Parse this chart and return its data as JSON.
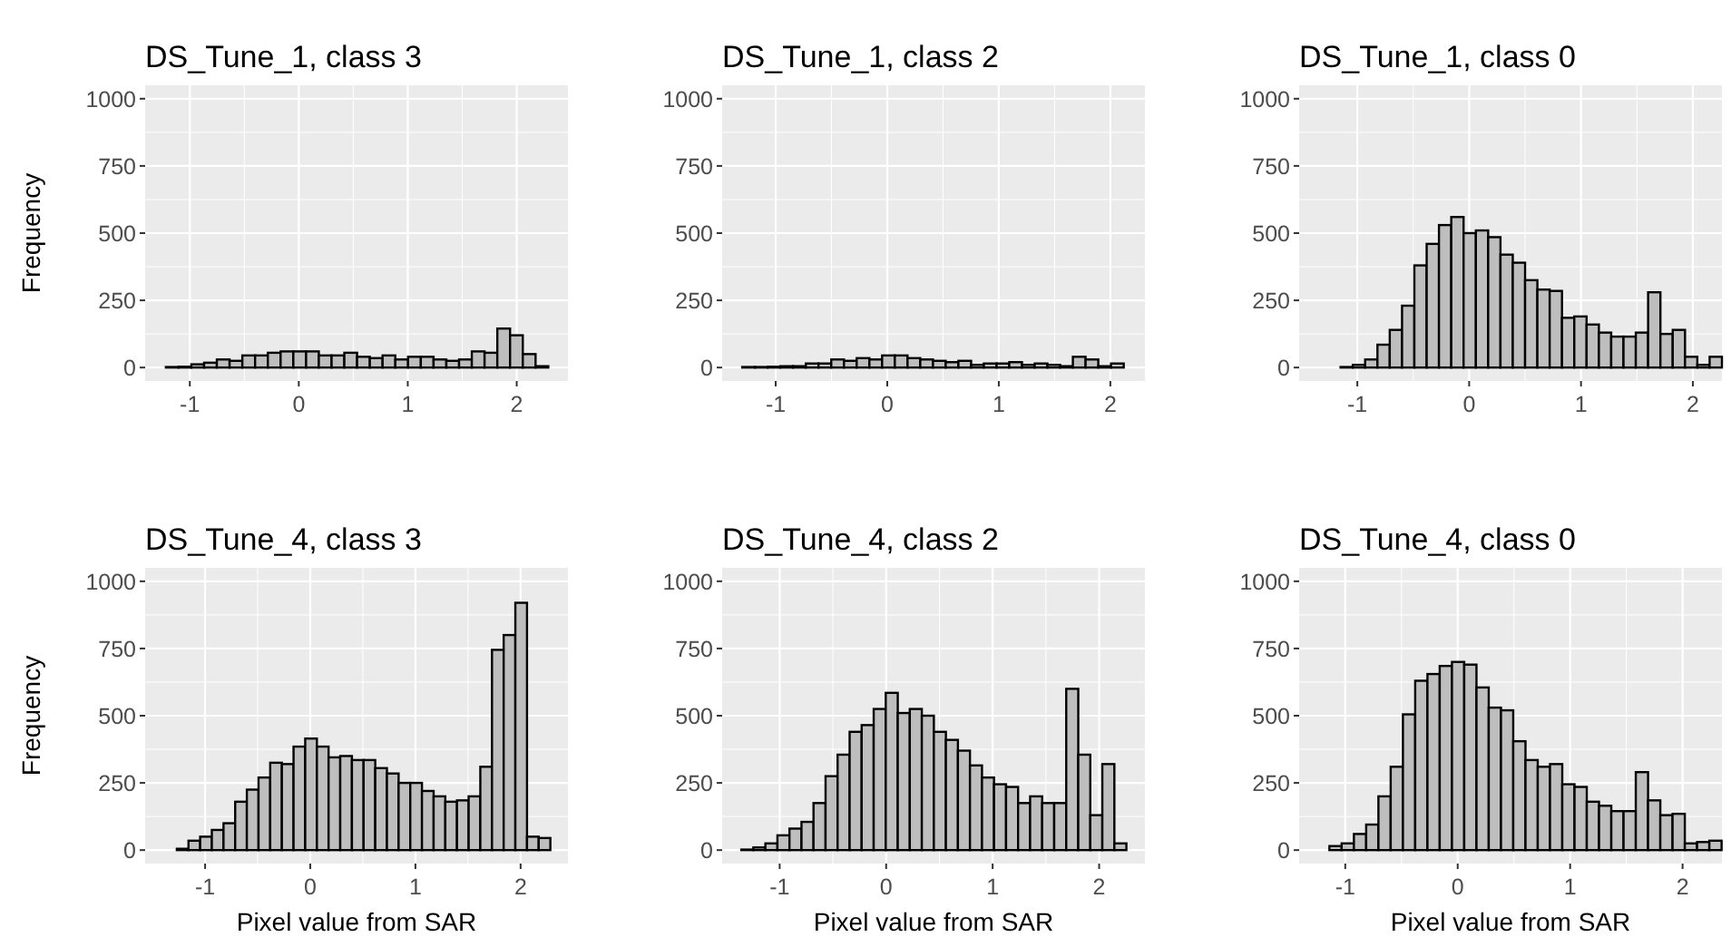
{
  "chart_data": [
    {
      "type": "histogram",
      "title": "DS_Tune_1, class 3",
      "ylabel": "Frequency",
      "bins": [
        -1.22,
        -1.103,
        -0.986,
        -0.869,
        -0.752,
        -0.635,
        -0.518,
        -0.401,
        -0.284,
        -0.167,
        -0.05,
        0.067,
        0.184,
        0.301,
        0.418,
        0.535,
        0.652,
        0.769,
        0.886,
        1.003,
        1.12,
        1.237,
        1.354,
        1.471,
        1.588,
        1.705,
        1.822,
        1.939,
        2.056,
        2.173,
        2.29
      ],
      "values": [
        2,
        3,
        12,
        18,
        30,
        25,
        45,
        45,
        55,
        60,
        60,
        60,
        45,
        45,
        55,
        40,
        35,
        45,
        30,
        40,
        40,
        30,
        25,
        30,
        60,
        55,
        145,
        120,
        50,
        5
      ],
      "color": "#bebebe",
      "xlim": [
        -1.41,
        2.47
      ],
      "ylim": [
        -50,
        1050
      ],
      "xticks": [
        -1,
        0,
        1,
        2
      ],
      "yticks": [
        0,
        250,
        500,
        750,
        1000
      ],
      "grid": true
    },
    {
      "type": "histogram",
      "title": "DS_Tune_1, class 2",
      "bins": [
        -1.3,
        -1.186,
        -1.072,
        -0.958,
        -0.844,
        -0.73,
        -0.616,
        -0.502,
        -0.388,
        -0.274,
        -0.16,
        -0.046,
        0.068,
        0.182,
        0.296,
        0.41,
        0.524,
        0.638,
        0.752,
        0.866,
        0.98,
        1.094,
        1.208,
        1.322,
        1.436,
        1.55,
        1.664,
        1.778,
        1.892,
        2.006,
        2.12
      ],
      "values": [
        2,
        2,
        3,
        5,
        5,
        15,
        15,
        30,
        25,
        35,
        30,
        45,
        45,
        35,
        30,
        25,
        20,
        25,
        10,
        15,
        15,
        20,
        10,
        15,
        10,
        5,
        40,
        30,
        5,
        15
      ],
      "color": "#bebebe",
      "xlim": [
        -1.48,
        2.31
      ],
      "ylim": [
        -50,
        1050
      ],
      "xticks": [
        -1,
        0,
        1,
        2
      ],
      "yticks": [
        0,
        250,
        500,
        750,
        1000
      ],
      "grid": true
    },
    {
      "type": "histogram",
      "title": "DS_Tune_1, class 0",
      "bins": [
        -1.37,
        -1.26,
        -1.15,
        -1.04,
        -0.93,
        -0.82,
        -0.71,
        -0.6,
        -0.49,
        -0.38,
        -0.27,
        -0.16,
        -0.05,
        0.06,
        0.17,
        0.28,
        0.39,
        0.5,
        0.61,
        0.72,
        0.83,
        0.94,
        1.05,
        1.16,
        1.27,
        1.38,
        1.49,
        1.6,
        1.71,
        1.82,
        1.93,
        2.04,
        2.15,
        2.26
      ],
      "values": [
        0,
        0,
        2,
        10,
        30,
        85,
        140,
        230,
        380,
        460,
        530,
        560,
        500,
        510,
        485,
        420,
        390,
        325,
        290,
        285,
        185,
        190,
        160,
        130,
        115,
        115,
        130,
        280,
        125,
        140,
        40,
        10,
        40
      ],
      "color": "#bebebe",
      "xlim": [
        -1.52,
        2.26
      ],
      "ylim": [
        -50,
        1050
      ],
      "xticks": [
        -1,
        0,
        1,
        2
      ],
      "yticks": [
        0,
        250,
        500,
        750,
        1000
      ],
      "grid": true
    },
    {
      "type": "histogram",
      "title": "DS_Tune_4, class 3",
      "xlabel": "Pixel value from SAR",
      "ylabel": "Frequency",
      "bins": [
        -1.38,
        -1.269,
        -1.158,
        -1.047,
        -0.936,
        -0.825,
        -0.714,
        -0.603,
        -0.492,
        -0.381,
        -0.27,
        -0.159,
        -0.048,
        0.063,
        0.174,
        0.285,
        0.396,
        0.507,
        0.618,
        0.729,
        0.84,
        0.951,
        1.062,
        1.173,
        1.284,
        1.395,
        1.506,
        1.617,
        1.728,
        1.839,
        1.95,
        2.061,
        2.172,
        2.283
      ],
      "values": [
        0,
        5,
        35,
        50,
        75,
        100,
        180,
        225,
        270,
        325,
        320,
        385,
        415,
        385,
        345,
        350,
        335,
        335,
        305,
        285,
        250,
        250,
        220,
        200,
        180,
        185,
        200,
        310,
        745,
        800,
        920,
        50,
        45
      ],
      "color": "#bebebe",
      "xlim": [
        -1.57,
        2.45
      ],
      "ylim": [
        -50,
        1050
      ],
      "xticks": [
        -1,
        0,
        1,
        2
      ],
      "yticks": [
        0,
        250,
        500,
        750,
        1000
      ],
      "grid": true
    },
    {
      "type": "histogram",
      "title": "DS_Tune_4, class 2",
      "xlabel": "Pixel value from SAR",
      "bins": [
        -1.36,
        -1.247,
        -1.134,
        -1.021,
        -0.908,
        -0.795,
        -0.682,
        -0.569,
        -0.456,
        -0.343,
        -0.23,
        -0.117,
        -0.004,
        0.109,
        0.222,
        0.335,
        0.448,
        0.561,
        0.674,
        0.787,
        0.9,
        1.013,
        1.126,
        1.239,
        1.352,
        1.465,
        1.578,
        1.691,
        1.804,
        1.917,
        2.03,
        2.143,
        2.256
      ],
      "values": [
        2,
        10,
        25,
        55,
        80,
        105,
        175,
        275,
        355,
        440,
        465,
        525,
        585,
        510,
        525,
        500,
        440,
        410,
        370,
        315,
        270,
        245,
        235,
        175,
        200,
        175,
        175,
        600,
        355,
        130,
        320,
        25
      ],
      "color": "#bebebe",
      "xlim": [
        -1.54,
        2.43
      ],
      "ylim": [
        -50,
        1050
      ],
      "xticks": [
        -1,
        0,
        1,
        2
      ],
      "yticks": [
        0,
        250,
        500,
        750,
        1000
      ],
      "grid": true
    },
    {
      "type": "histogram",
      "title": "DS_Tune_4, class 0",
      "xlabel": "Pixel value from SAR",
      "bins": [
        -1.25,
        -1.141,
        -1.032,
        -0.923,
        -0.814,
        -0.705,
        -0.596,
        -0.487,
        -0.378,
        -0.269,
        -0.16,
        -0.051,
        0.058,
        0.167,
        0.276,
        0.385,
        0.494,
        0.603,
        0.712,
        0.821,
        0.93,
        1.039,
        1.148,
        1.257,
        1.366,
        1.475,
        1.584,
        1.693,
        1.802,
        1.911,
        2.02,
        2.129,
        2.238,
        2.347
      ],
      "values": [
        0,
        15,
        25,
        60,
        95,
        200,
        310,
        505,
        630,
        655,
        685,
        700,
        690,
        605,
        530,
        520,
        405,
        335,
        310,
        320,
        245,
        235,
        180,
        165,
        145,
        145,
        290,
        185,
        130,
        135,
        25,
        30,
        35
      ],
      "color": "#bebebe",
      "xlim": [
        -1.41,
        2.35
      ],
      "ylim": [
        -50,
        1050
      ],
      "xticks": [
        -1,
        0,
        1,
        2
      ],
      "yticks": [
        0,
        250,
        500,
        750,
        1000
      ],
      "grid": true
    }
  ]
}
